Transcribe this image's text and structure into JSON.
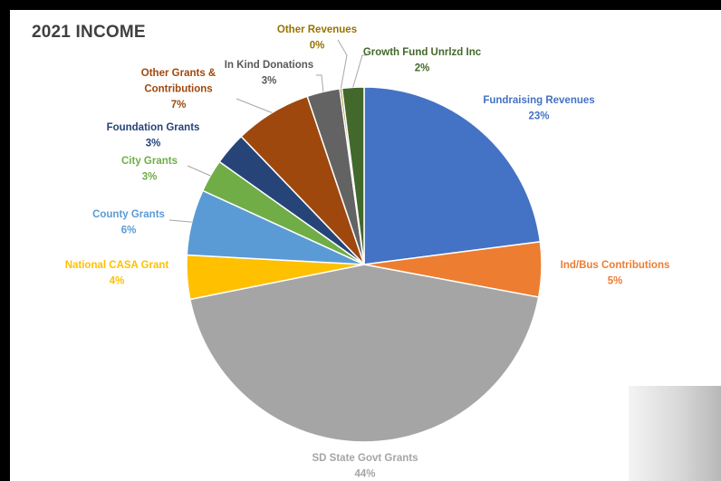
{
  "chart_data": {
    "type": "pie",
    "title": "2021 INCOME",
    "slices": [
      {
        "name": "Fundraising Revenues",
        "value": 23,
        "label": "23%",
        "color": "#4472C4",
        "labelColor": "#4472C4"
      },
      {
        "name": "Ind/Bus Contributions",
        "value": 5,
        "label": "5%",
        "color": "#ED7D31",
        "labelColor": "#ED7D31"
      },
      {
        "name": "SD State Govt Grants",
        "value": 44,
        "label": "44%",
        "color": "#A5A5A5",
        "labelColor": "#A5A5A5"
      },
      {
        "name": "National CASA Grant",
        "value": 4,
        "label": "4%",
        "color": "#FFC000",
        "labelColor": "#FFC000"
      },
      {
        "name": "County Grants",
        "value": 6,
        "label": "6%",
        "color": "#5B9BD5",
        "labelColor": "#5B9BD5"
      },
      {
        "name": "City Grants",
        "value": 3,
        "label": "3%",
        "color": "#70AD47",
        "labelColor": "#70AD47"
      },
      {
        "name": "Foundation Grants",
        "value": 3,
        "label": "3%",
        "color": "#264478",
        "labelColor": "#264478"
      },
      {
        "name": "Other Grants & Contributions",
        "lines": [
          "Other Grants &",
          "Contributions"
        ],
        "value": 7,
        "label": "7%",
        "color": "#9E480E",
        "labelColor": "#9E480E"
      },
      {
        "name": "In Kind Donations",
        "value": 3,
        "label": "3%",
        "color": "#636363",
        "labelColor": "#595959"
      },
      {
        "name": "Other Revenues",
        "value": 0.2,
        "label": "0%",
        "color": "#997300",
        "labelColor": "#997300"
      },
      {
        "name": "Growth Fund Unrlzd Inc",
        "value": 2,
        "label": "2%",
        "color": "#43682B",
        "labelColor": "#43682B"
      }
    ]
  }
}
